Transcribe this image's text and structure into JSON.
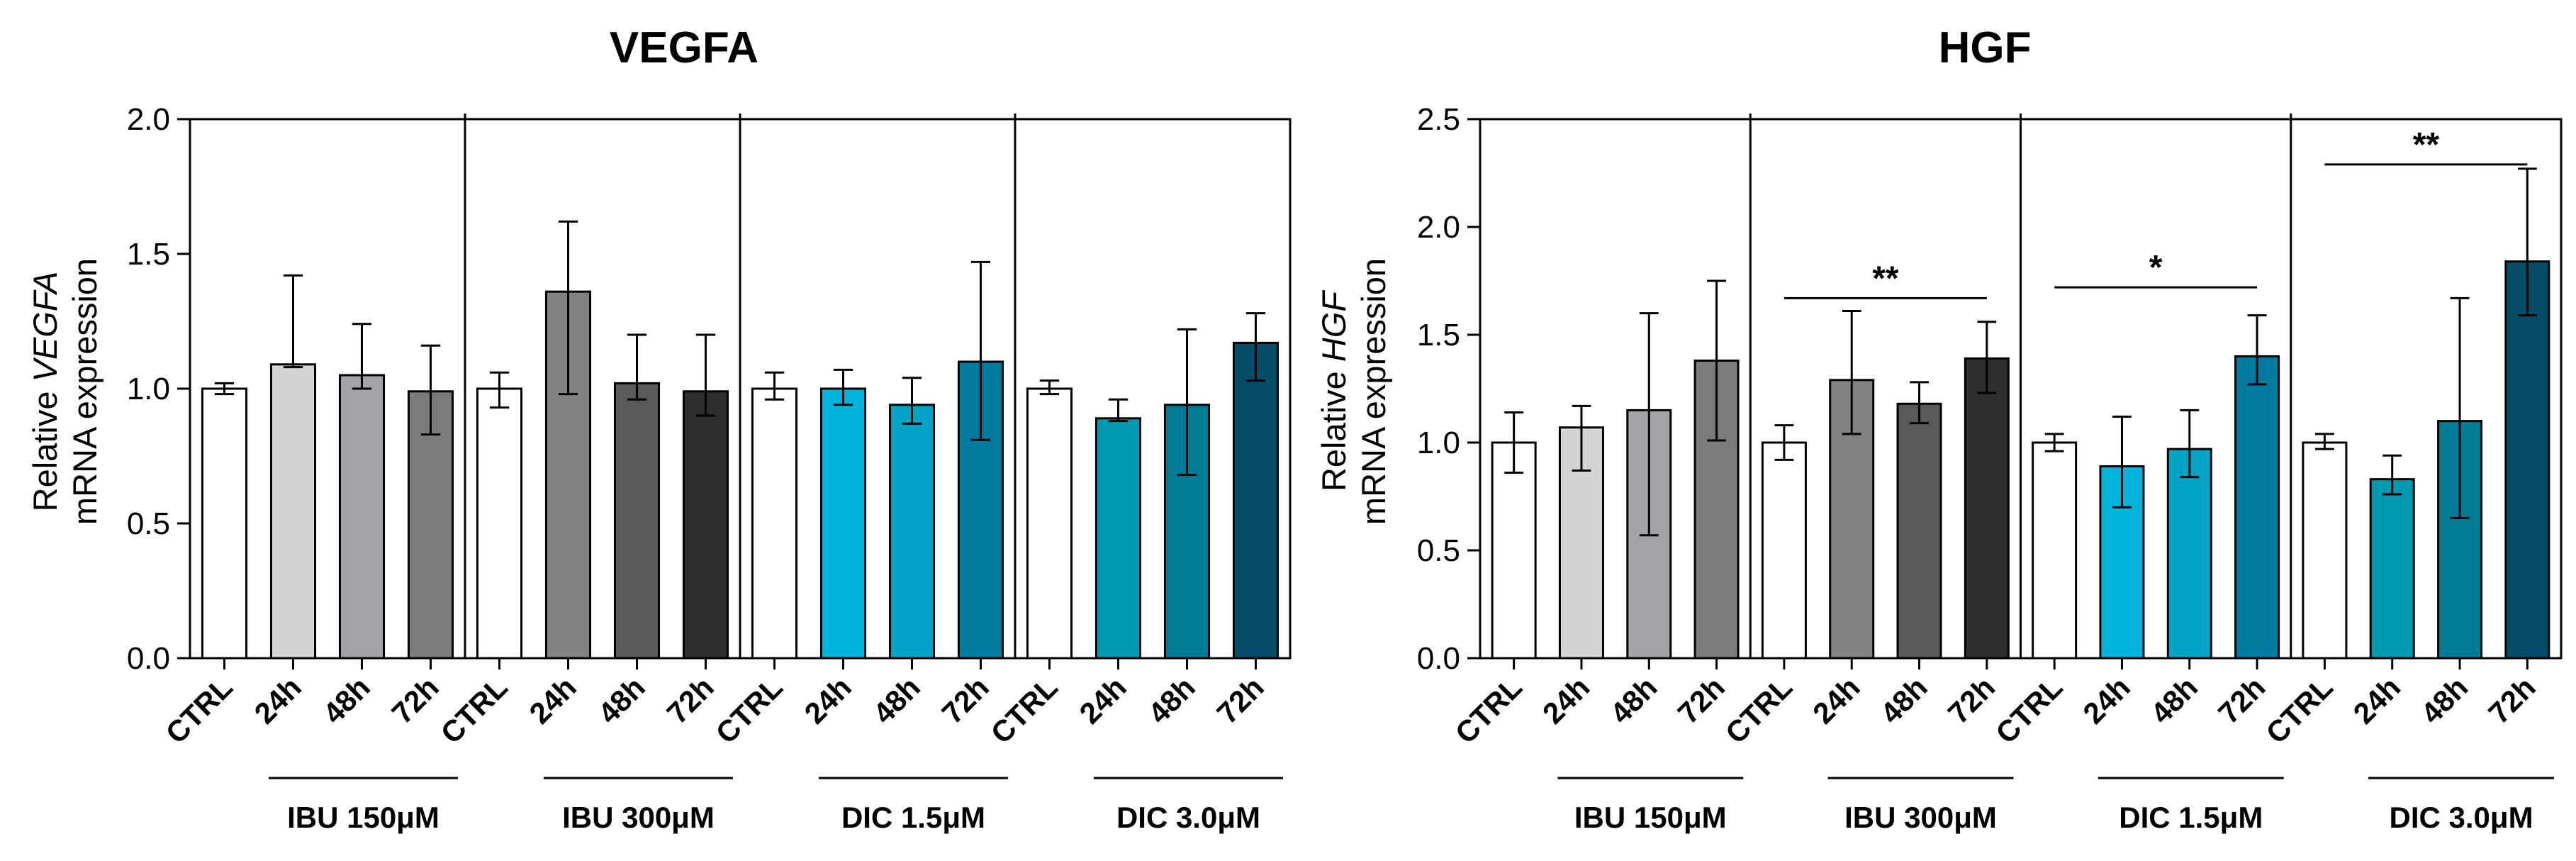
{
  "chart_data": [
    {
      "type": "bar",
      "title": "VEGFA",
      "ylabel_prefix": "Relative",
      "ylabel_gene": "VEGFA",
      "ylabel_line2": "mRNA expression",
      "ylim": [
        0,
        2.0
      ],
      "yticks": [
        0.0,
        0.5,
        1.0,
        1.5,
        2.0
      ],
      "ytick_labels": [
        "0.0",
        "0.5",
        "1.0",
        "1.5",
        "2.0"
      ],
      "categories": [
        "CTRL",
        "24h",
        "48h",
        "72h"
      ],
      "groups": [
        {
          "name": "IBU 150μM",
          "values": [
            1.0,
            1.09,
            1.05,
            0.99
          ],
          "err_low": [
            0.02,
            0.01,
            0.05,
            0.16
          ],
          "err_high": [
            0.02,
            0.33,
            0.19,
            0.17
          ],
          "colors": [
            "#ffffff",
            "#d4d4d4",
            "#a3a3a8",
            "#7b7b7b"
          ]
        },
        {
          "name": "IBU 300μM",
          "values": [
            1.0,
            1.36,
            1.02,
            0.99
          ],
          "err_low": [
            0.07,
            0.38,
            0.06,
            0.09
          ],
          "err_high": [
            0.06,
            0.26,
            0.18,
            0.21
          ],
          "colors": [
            "#ffffff",
            "#828282",
            "#595959",
            "#2e2e2e"
          ]
        },
        {
          "name": "DIC 1.5μM",
          "values": [
            1.0,
            1.0,
            0.94,
            1.1
          ],
          "err_low": [
            0.04,
            0.06,
            0.07,
            0.29
          ],
          "err_high": [
            0.06,
            0.07,
            0.1,
            0.37
          ],
          "colors": [
            "#ffffff",
            "#00b4dc",
            "#00a3c4",
            "#007a9e"
          ]
        },
        {
          "name": "DIC 3.0μM",
          "values": [
            1.0,
            0.89,
            0.94,
            1.17
          ],
          "err_low": [
            0.02,
            0.01,
            0.26,
            0.14
          ],
          "err_high": [
            0.03,
            0.07,
            0.28,
            0.11
          ],
          "colors": [
            "#ffffff",
            "#009ab0",
            "#007b96",
            "#034e66"
          ]
        }
      ],
      "significance": []
    },
    {
      "type": "bar",
      "title": "HGF",
      "ylabel_prefix": "Relative",
      "ylabel_gene": "HGF",
      "ylabel_line2": "mRNA expression",
      "ylim": [
        0,
        2.5
      ],
      "yticks": [
        0.0,
        0.5,
        1.0,
        1.5,
        2.0,
        2.5
      ],
      "ytick_labels": [
        "0.0",
        "0.5",
        "1.0",
        "1.5",
        "2.0",
        "2.5"
      ],
      "categories": [
        "CTRL",
        "24h",
        "48h",
        "72h"
      ],
      "groups": [
        {
          "name": "IBU 150μM",
          "values": [
            1.0,
            1.07,
            1.15,
            1.38
          ],
          "err_low": [
            0.14,
            0.2,
            0.58,
            0.37
          ],
          "err_high": [
            0.14,
            0.1,
            0.45,
            0.37
          ],
          "colors": [
            "#ffffff",
            "#d4d4d4",
            "#a3a3a8",
            "#7b7b7b"
          ]
        },
        {
          "name": "IBU 300μM",
          "values": [
            1.0,
            1.29,
            1.18,
            1.39
          ],
          "err_low": [
            0.08,
            0.25,
            0.09,
            0.16
          ],
          "err_high": [
            0.08,
            0.32,
            0.1,
            0.17
          ],
          "colors": [
            "#ffffff",
            "#828282",
            "#595959",
            "#2e2e2e"
          ]
        },
        {
          "name": "DIC 1.5μM",
          "values": [
            1.0,
            0.89,
            0.97,
            1.4
          ],
          "err_low": [
            0.04,
            0.19,
            0.13,
            0.13
          ],
          "err_high": [
            0.04,
            0.23,
            0.18,
            0.19
          ],
          "colors": [
            "#ffffff",
            "#00b4dc",
            "#00a3c4",
            "#007a9e"
          ]
        },
        {
          "name": "DIC 3.0μM",
          "values": [
            1.0,
            0.83,
            1.1,
            1.84
          ],
          "err_low": [
            0.03,
            0.07,
            0.45,
            0.25
          ],
          "err_high": [
            0.04,
            0.11,
            0.57,
            0.43
          ],
          "colors": [
            "#ffffff",
            "#009ab0",
            "#007b96",
            "#034e66"
          ]
        }
      ],
      "significance": [
        {
          "group": 1,
          "label": "**",
          "y": 1.67
        },
        {
          "group": 2,
          "label": "*",
          "y": 1.72
        },
        {
          "group": 3,
          "label": "**",
          "y": 2.29
        }
      ]
    }
  ]
}
